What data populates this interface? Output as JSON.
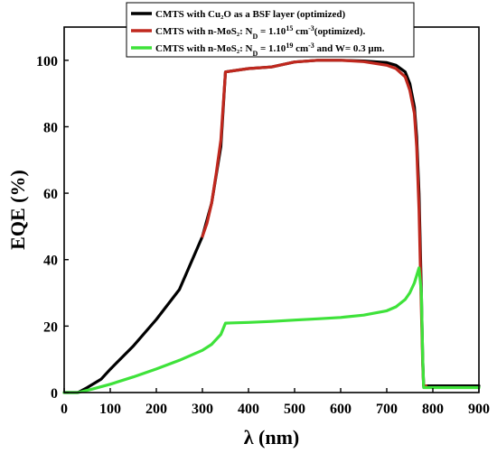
{
  "chart_data": {
    "type": "line",
    "xlabel": "λ (nm)",
    "ylabel": "EQE (%)",
    "xlim": [
      0,
      900
    ],
    "ylim": [
      0,
      110
    ],
    "xticks": [
      0,
      100,
      200,
      300,
      400,
      500,
      600,
      700,
      800,
      900
    ],
    "yticks": [
      0,
      20,
      40,
      60,
      80,
      100
    ],
    "grid": false,
    "legend_position": "top-right",
    "series": [
      {
        "name": "CMTS with Cu₂O as a BSF layer (optimized)",
        "color": "#000000",
        "points": [
          [
            0,
            0
          ],
          [
            30,
            0
          ],
          [
            50,
            1.5
          ],
          [
            80,
            4
          ],
          [
            100,
            7
          ],
          [
            150,
            14
          ],
          [
            200,
            22
          ],
          [
            250,
            31
          ],
          [
            300,
            47
          ],
          [
            320,
            57
          ],
          [
            340,
            74
          ],
          [
            350,
            96.5
          ],
          [
            400,
            97.5
          ],
          [
            450,
            98
          ],
          [
            500,
            99.5
          ],
          [
            550,
            100
          ],
          [
            600,
            100
          ],
          [
            650,
            99.8
          ],
          [
            700,
            99.3
          ],
          [
            720,
            98.5
          ],
          [
            740,
            96.5
          ],
          [
            750,
            93
          ],
          [
            760,
            86
          ],
          [
            765,
            77
          ],
          [
            770,
            60
          ],
          [
            775,
            30
          ],
          [
            778,
            10
          ],
          [
            780,
            2
          ],
          [
            785,
            2
          ],
          [
            900,
            2
          ]
        ]
      },
      {
        "name": "CMTS with n-MoS₂: N_D = 1.10^15 cm^-3(optimized).",
        "color": "#c0281e",
        "points": [
          [
            300,
            47
          ],
          [
            310,
            51
          ],
          [
            320,
            57
          ],
          [
            330,
            66
          ],
          [
            340,
            76
          ],
          [
            350,
            96.5
          ],
          [
            400,
            97.5
          ],
          [
            450,
            98
          ],
          [
            500,
            99.5
          ],
          [
            550,
            100
          ],
          [
            600,
            100
          ],
          [
            650,
            99.6
          ],
          [
            700,
            98.5
          ],
          [
            720,
            97.5
          ],
          [
            740,
            95
          ],
          [
            750,
            91
          ],
          [
            760,
            84
          ],
          [
            765,
            74
          ],
          [
            770,
            55
          ],
          [
            775,
            25
          ],
          [
            778,
            8
          ],
          [
            780,
            2
          ],
          [
            785,
            2
          ]
        ]
      },
      {
        "name": "CMTS with n-MoS₂: N_D = 1.10^19 cm^-3 and W= 0.3 μm.",
        "color": "#3ee23a",
        "points": [
          [
            0,
            0
          ],
          [
            30,
            0
          ],
          [
            60,
            1
          ],
          [
            100,
            2.5
          ],
          [
            150,
            4.7
          ],
          [
            200,
            7.1
          ],
          [
            250,
            9.7
          ],
          [
            300,
            12.7
          ],
          [
            320,
            14.5
          ],
          [
            340,
            17.5
          ],
          [
            350,
            20.9
          ],
          [
            400,
            21.1
          ],
          [
            450,
            21.4
          ],
          [
            500,
            21.8
          ],
          [
            550,
            22.2
          ],
          [
            600,
            22.6
          ],
          [
            650,
            23.3
          ],
          [
            700,
            24.6
          ],
          [
            720,
            25.8
          ],
          [
            740,
            28
          ],
          [
            750,
            30
          ],
          [
            760,
            33
          ],
          [
            770,
            37.5
          ],
          [
            775,
            30
          ],
          [
            778,
            10
          ],
          [
            780,
            1.5
          ],
          [
            900,
            1.5
          ]
        ]
      }
    ]
  }
}
